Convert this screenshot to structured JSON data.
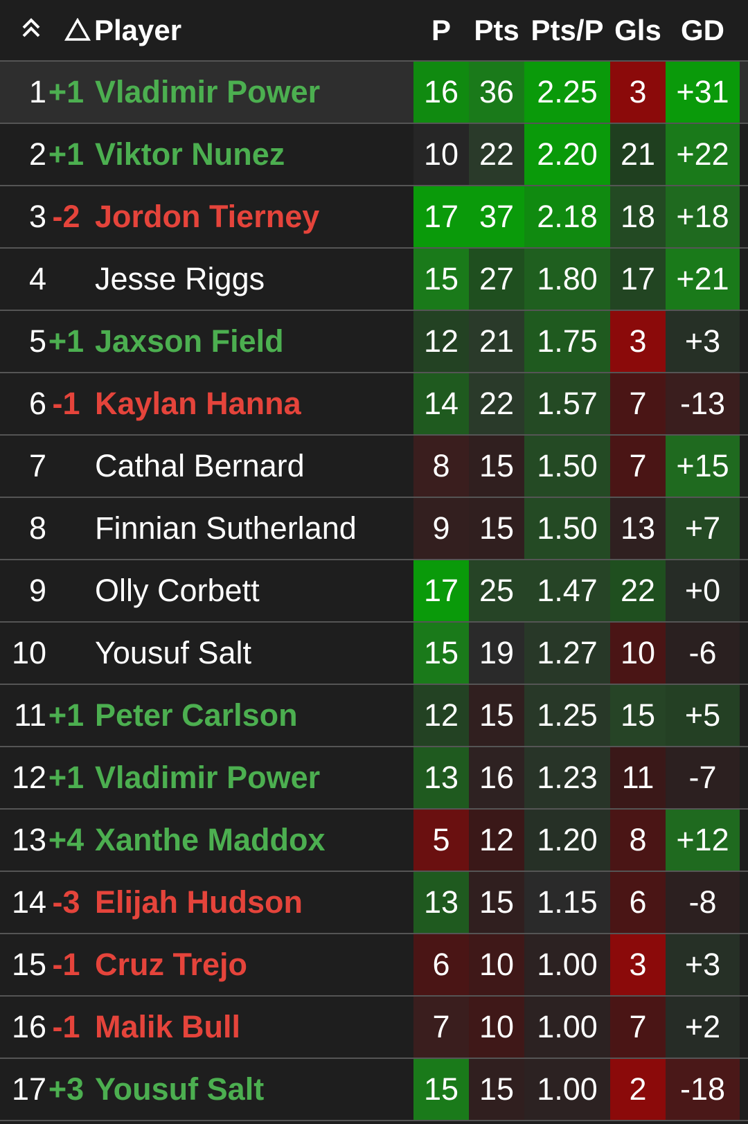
{
  "header": {
    "player": "Player",
    "columns": [
      "P",
      "Pts",
      "Pts/P",
      "Gls",
      "GD"
    ]
  },
  "rows": [
    {
      "rank": "1",
      "change": "+1",
      "name": "Vladimir Power",
      "cells": [
        "16",
        "36",
        "2.25",
        "3",
        "+31"
      ],
      "colors": [
        "#108a10",
        "#1a7a1a",
        "#0a9a0a",
        "#8b0a0a",
        "#0a9a0a"
      ]
    },
    {
      "rank": "2",
      "change": "+1",
      "name": "Viktor Nunez",
      "cells": [
        "10",
        "22",
        "2.20",
        "21",
        "+22"
      ],
      "colors": [
        "#262626",
        "#2a3a2a",
        "#0a9a0a",
        "#1f3f1f",
        "#1a7a1a"
      ]
    },
    {
      "rank": "3",
      "change": "-2",
      "name": "Jordon Tierney",
      "cells": [
        "17",
        "37",
        "2.18",
        "18",
        "+18"
      ],
      "colors": [
        "#0a9a0a",
        "#0a9a0a",
        "#108a10",
        "#234a23",
        "#1f6a1f"
      ]
    },
    {
      "rank": "4",
      "change": null,
      "name": "Jesse Riggs",
      "cells": [
        "15",
        "27",
        "1.80",
        "17",
        "+21"
      ],
      "colors": [
        "#1a7a1a",
        "#1f4f1f",
        "#1f5f1f",
        "#224522",
        "#1a7a1a"
      ]
    },
    {
      "rank": "5",
      "change": "+1",
      "name": "Jaxson Field",
      "cells": [
        "12",
        "21",
        "1.75",
        "3",
        "+3"
      ],
      "colors": [
        "#234223",
        "#2a3a2a",
        "#1f5a1f",
        "#8b0a0a",
        "#263026"
      ]
    },
    {
      "rank": "6",
      "change": "-1",
      "name": "Kaylan Hanna",
      "cells": [
        "14",
        "22",
        "1.57",
        "7",
        "-13"
      ],
      "colors": [
        "#1f5a1f",
        "#2a3a2a",
        "#244a24",
        "#4a1515",
        "#3a1e1e"
      ]
    },
    {
      "rank": "7",
      "change": null,
      "name": "Cathal Bernard",
      "cells": [
        "8",
        "15",
        "1.50",
        "7",
        "+15"
      ],
      "colors": [
        "#3a1e1e",
        "#301f1f",
        "#244a24",
        "#4a1515",
        "#1f6a1f"
      ]
    },
    {
      "rank": "8",
      "change": null,
      "name": "Finnian Sutherland",
      "cells": [
        "9",
        "15",
        "1.50",
        "13",
        "+7"
      ],
      "colors": [
        "#331f1f",
        "#301f1f",
        "#244a24",
        "#2f2020",
        "#244a24"
      ]
    },
    {
      "rank": "9",
      "change": null,
      "name": "Olly Corbett",
      "cells": [
        "17",
        "25",
        "1.47",
        "22",
        "+0"
      ],
      "colors": [
        "#0a9a0a",
        "#264426",
        "#264426",
        "#1f4f1f",
        "#262c26"
      ]
    },
    {
      "rank": "10",
      "change": null,
      "name": "Yousuf Salt",
      "cells": [
        "15",
        "19",
        "1.27",
        "10",
        "-6"
      ],
      "colors": [
        "#1a7a1a",
        "#2a2a2a",
        "#283828",
        "#4a1515",
        "#2a2020"
      ]
    },
    {
      "rank": "11",
      "change": "+1",
      "name": "Peter Carlson",
      "cells": [
        "12",
        "15",
        "1.25",
        "15",
        "+5"
      ],
      "colors": [
        "#234223",
        "#301f1f",
        "#283828",
        "#264426",
        "#244024"
      ]
    },
    {
      "rank": "12",
      "change": "+1",
      "name": "Vladimir Power",
      "cells": [
        "13",
        "16",
        "1.23",
        "11",
        "-7"
      ],
      "colors": [
        "#1f5a1f",
        "#2e2222",
        "#283428",
        "#3a1818",
        "#2c2020"
      ]
    },
    {
      "rank": "13",
      "change": "+4",
      "name": "Xanthe Maddox",
      "cells": [
        "5",
        "12",
        "1.20",
        "8",
        "+12"
      ],
      "colors": [
        "#6a1010",
        "#3a1818",
        "#263026",
        "#4a1515",
        "#1f6a1f"
      ]
    },
    {
      "rank": "14",
      "change": "-3",
      "name": "Elijah Hudson",
      "cells": [
        "13",
        "15",
        "1.15",
        "6",
        "-8"
      ],
      "colors": [
        "#1f5a1f",
        "#301f1f",
        "#2a2a2a",
        "#4a1515",
        "#2c2020"
      ]
    },
    {
      "rank": "15",
      "change": "-1",
      "name": "Cruz Trejo",
      "cells": [
        "6",
        "10",
        "1.00",
        "3",
        "+3"
      ],
      "colors": [
        "#4a1515",
        "#3f1818",
        "#2c2222",
        "#8b0a0a",
        "#263026"
      ]
    },
    {
      "rank": "16",
      "change": "-1",
      "name": "Malik Bull",
      "cells": [
        "7",
        "10",
        "1.00",
        "7",
        "+2"
      ],
      "colors": [
        "#3a1e1e",
        "#3f1818",
        "#2c2222",
        "#4a1515",
        "#262c26"
      ]
    },
    {
      "rank": "17",
      "change": "+3",
      "name": "Yousuf Salt",
      "cells": [
        "15",
        "15",
        "1.00",
        "2",
        "-18"
      ],
      "colors": [
        "#1a7a1a",
        "#301f1f",
        "#2c2222",
        "#8b0a0a",
        "#4a1818"
      ]
    }
  ]
}
